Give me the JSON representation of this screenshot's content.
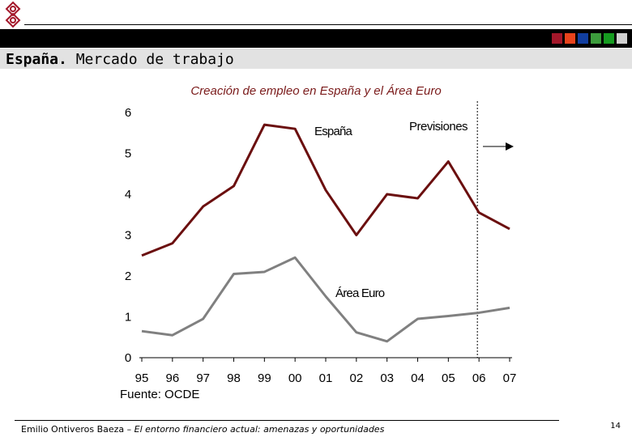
{
  "header": {
    "title_bold": "España.",
    "title_rest": " Mercado de trabajo",
    "squares": [
      "#a3172a",
      "#e8431c",
      "#113ea0",
      "#3c9c3c",
      "#169c20",
      "#d0d0d0"
    ]
  },
  "chart_data": {
    "type": "line",
    "title": "Creación de empleo en España y el Área Euro",
    "categories": [
      "95",
      "96",
      "97",
      "98",
      "99",
      "00",
      "01",
      "02",
      "03",
      "04",
      "05",
      "06",
      "07"
    ],
    "ylim": [
      0,
      6
    ],
    "yticks": [
      "0",
      "1",
      "2",
      "3",
      "4",
      "5",
      "6"
    ],
    "series": [
      {
        "name": "España",
        "color": "#6b0f0f",
        "values": [
          2.5,
          2.8,
          3.7,
          4.2,
          5.7,
          5.6,
          4.1,
          3.0,
          4.0,
          3.9,
          4.8,
          3.55,
          3.15
        ]
      },
      {
        "name": "Área Euro",
        "color": "#808080",
        "values": [
          0.65,
          0.55,
          0.95,
          2.05,
          2.1,
          2.45,
          1.5,
          0.62,
          0.4,
          0.95,
          1.02,
          1.1,
          1.22
        ]
      }
    ],
    "annotation": "Previsiones",
    "source": "Fuente: OCDE"
  },
  "footer": {
    "author": "Emilio Ontiveros Baeza – ",
    "work": "El entorno financiero actual: amenazas y oportunidades",
    "page": "14"
  }
}
